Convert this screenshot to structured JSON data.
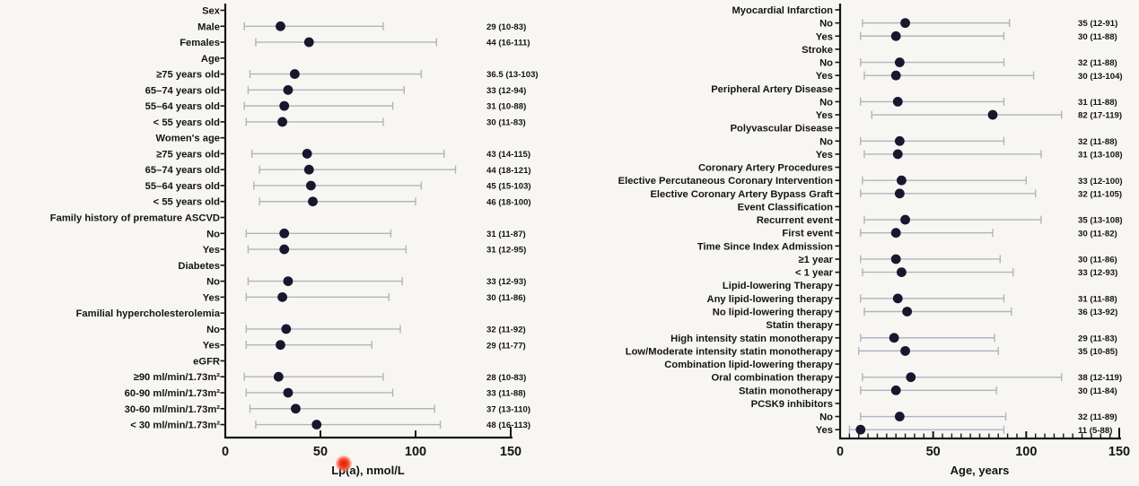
{
  "figure": {
    "background": "#f7f6f3",
    "dot_color": "#17172e",
    "whisker_color": "#b3b3c0",
    "axis_color": "#141414",
    "text_color": "#141414",
    "pointer": {
      "color": "#f0341a",
      "description": "red laser pointer dot over x-axis title"
    }
  },
  "chart_data": [
    {
      "type": "forest_dot_plot",
      "title": "",
      "xlabel": "Lp(a), nmol/L",
      "xlim": [
        0,
        150
      ],
      "xticks": [
        0,
        50,
        100,
        150
      ],
      "xtick_labels": [
        "0",
        "50",
        "100",
        "150"
      ],
      "minor_tick_step": null,
      "value_format": "median (range)",
      "rows": [
        {
          "label": "Sex",
          "header": true
        },
        {
          "label": "Male",
          "median": 29,
          "low": 10,
          "high": 83,
          "annotation": "29 (10-83)"
        },
        {
          "label": "Females",
          "median": 44,
          "low": 16,
          "high": 111,
          "annotation": "44 (16-111)"
        },
        {
          "label": "Age",
          "header": true
        },
        {
          "label": "≥75 years old",
          "median": 36.5,
          "low": 13,
          "high": 103,
          "annotation": "36.5 (13-103)"
        },
        {
          "label": "65–74 years old",
          "median": 33,
          "low": 12,
          "high": 94,
          "annotation": "33 (12-94)"
        },
        {
          "label": "55–64 years old",
          "median": 31,
          "low": 10,
          "high": 88,
          "annotation": "31 (10-88)"
        },
        {
          "label": "< 55 years old",
          "median": 30,
          "low": 11,
          "high": 83,
          "annotation": "30 (11-83)"
        },
        {
          "label": "Women's age",
          "header": true
        },
        {
          "label": "≥75 years old",
          "median": 43,
          "low": 14,
          "high": 115,
          "annotation": "43 (14-115)"
        },
        {
          "label": "65–74 years old",
          "median": 44,
          "low": 18,
          "high": 121,
          "annotation": "44 (18-121)"
        },
        {
          "label": "55–64 years old",
          "median": 45,
          "low": 15,
          "high": 103,
          "annotation": "45 (15-103)"
        },
        {
          "label": "< 55 years old",
          "median": 46,
          "low": 18,
          "high": 100,
          "annotation": "46 (18-100)"
        },
        {
          "label": "Family history of premature ASCVD",
          "header": true
        },
        {
          "label": "No",
          "median": 31,
          "low": 11,
          "high": 87,
          "annotation": "31 (11-87)"
        },
        {
          "label": "Yes",
          "median": 31,
          "low": 12,
          "high": 95,
          "annotation": "31 (12-95)"
        },
        {
          "label": "Diabetes",
          "header": true
        },
        {
          "label": "No",
          "median": 33,
          "low": 12,
          "high": 93,
          "annotation": "33 (12-93)"
        },
        {
          "label": "Yes",
          "median": 30,
          "low": 11,
          "high": 86,
          "annotation": "30 (11-86)"
        },
        {
          "label": "Familial hypercholesterolemia",
          "header": true
        },
        {
          "label": "No",
          "median": 32,
          "low": 11,
          "high": 92,
          "annotation": "32 (11-92)"
        },
        {
          "label": "Yes",
          "median": 29,
          "low": 11,
          "high": 77,
          "annotation": "29 (11-77)"
        },
        {
          "label": "eGFR",
          "header": true
        },
        {
          "label": "≥90 ml/min/1.73m²",
          "median": 28,
          "low": 10,
          "high": 83,
          "annotation": "28 (10-83)"
        },
        {
          "label": "60-90 ml/min/1.73m²",
          "median": 33,
          "low": 11,
          "high": 88,
          "annotation": "33 (11-88)"
        },
        {
          "label": "30-60 ml/min/1.73m²",
          "median": 37,
          "low": 13,
          "high": 110,
          "annotation": "37 (13-110)"
        },
        {
          "label": "< 30 ml/min/1.73m²",
          "median": 48,
          "low": 16,
          "high": 113,
          "annotation": "48 (16-113)"
        }
      ]
    },
    {
      "type": "forest_dot_plot",
      "title": "",
      "xlabel": "Age, years",
      "xlim": [
        0,
        150
      ],
      "xticks": [
        0,
        50,
        100,
        150
      ],
      "xtick_labels": [
        "0",
        "50",
        "100",
        "150"
      ],
      "minor_tick_step": 5,
      "value_format": "median (range)",
      "rows": [
        {
          "label": "Myocardial Infarction",
          "header": true
        },
        {
          "label": "No",
          "median": 35,
          "low": 12,
          "high": 91,
          "annotation": "35 (12-91)"
        },
        {
          "label": "Yes",
          "median": 30,
          "low": 11,
          "high": 88,
          "annotation": "30 (11-88)"
        },
        {
          "label": "Stroke",
          "header": true
        },
        {
          "label": "No",
          "median": 32,
          "low": 11,
          "high": 88,
          "annotation": "32 (11-88)"
        },
        {
          "label": "Yes",
          "median": 30,
          "low": 13,
          "high": 104,
          "annotation": "30 (13-104)"
        },
        {
          "label": "Peripheral Artery Disease",
          "header": true
        },
        {
          "label": "No",
          "median": 31,
          "low": 11,
          "high": 88,
          "annotation": "31 (11-88)"
        },
        {
          "label": "Yes",
          "median": 82,
          "low": 17,
          "high": 119,
          "annotation": "82 (17-119)"
        },
        {
          "label": "Polyvascular Disease",
          "header": true
        },
        {
          "label": "No",
          "median": 32,
          "low": 11,
          "high": 88,
          "annotation": "32 (11-88)"
        },
        {
          "label": "Yes",
          "median": 31,
          "low": 13,
          "high": 108,
          "annotation": "31 (13-108)"
        },
        {
          "label": "Coronary Artery Procedures",
          "header": true
        },
        {
          "label": "Elective Percutaneous Coronary Intervention",
          "median": 33,
          "low": 12,
          "high": 100,
          "annotation": "33 (12-100)"
        },
        {
          "label": "Elective Coronary Artery Bypass Graft",
          "median": 32,
          "low": 11,
          "high": 105,
          "annotation": "32 (11-105)"
        },
        {
          "label": "Event Classification",
          "header": true
        },
        {
          "label": "Recurrent event",
          "median": 35,
          "low": 13,
          "high": 108,
          "annotation": "35 (13-108)"
        },
        {
          "label": "First event",
          "median": 30,
          "low": 11,
          "high": 82,
          "annotation": "30 (11-82)"
        },
        {
          "label": "Time Since Index Admission",
          "header": true
        },
        {
          "label": "≥1 year",
          "median": 30,
          "low": 11,
          "high": 86,
          "annotation": "30 (11-86)"
        },
        {
          "label": "< 1 year",
          "median": 33,
          "low": 12,
          "high": 93,
          "annotation": "33 (12-93)"
        },
        {
          "label": "Lipid-lowering Therapy",
          "header": true
        },
        {
          "label": "Any lipid-lowering therapy",
          "median": 31,
          "low": 11,
          "high": 88,
          "annotation": "31 (11-88)"
        },
        {
          "label": "No lipid-lowering therapy",
          "median": 36,
          "low": 13,
          "high": 92,
          "annotation": "36 (13-92)"
        },
        {
          "label": "Statin therapy",
          "header": true
        },
        {
          "label": "High intensity statin monotherapy",
          "median": 29,
          "low": 11,
          "high": 83,
          "annotation": "29 (11-83)"
        },
        {
          "label": "Low/Moderate intensity statin monotherapy",
          "median": 35,
          "low": 10,
          "high": 85,
          "annotation": "35 (10-85)"
        },
        {
          "label": "Combination lipid-lowering therapy",
          "header": true
        },
        {
          "label": "Oral combination therapy",
          "median": 38,
          "low": 12,
          "high": 119,
          "annotation": "38 (12-119)"
        },
        {
          "label": "Statin monotherapy",
          "median": 30,
          "low": 11,
          "high": 84,
          "annotation": "30 (11-84)"
        },
        {
          "label": "PCSK9 inhibitors",
          "header": true
        },
        {
          "label": "No",
          "median": 32,
          "low": 11,
          "high": 89,
          "annotation": "32 (11-89)"
        },
        {
          "label": "Yes",
          "median": 11,
          "low": 5,
          "high": 88,
          "annotation": "11 (5-88)"
        }
      ]
    }
  ]
}
